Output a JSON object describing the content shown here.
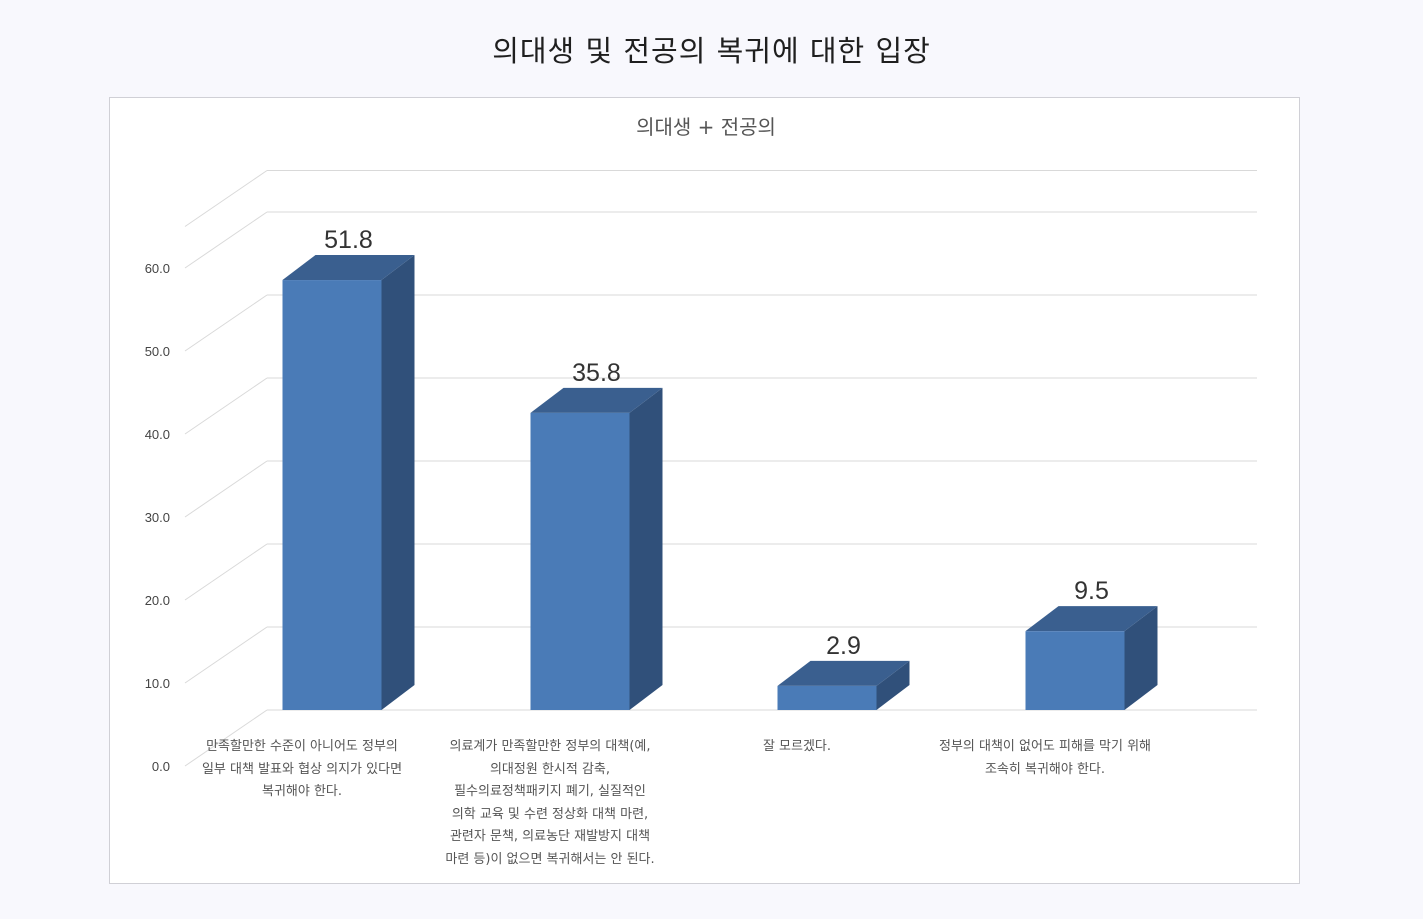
{
  "page": {
    "title": "의대생 및 전공의 복귀에 대한 입장"
  },
  "chart_data": {
    "type": "bar",
    "subtitle": "의대생 + 전공의",
    "categories": [
      "만족할만한 수준이 아니어도 정부의 일부 대책 발표와 협상 의지가 있다면 복귀해야 한다.",
      "의료계가 만족할만한 정부의 대책(예, 의대정원 한시적 감축, 필수의료정책패키지 폐기, 실질적인 의학 교육 및 수련 정상화 대책 마련, 관련자 문책, 의료농단 재발방지 대책 마련 등)이 없으면 복귀해서는 안 된다.",
      "잘 모르겠다.",
      "정부의 대책이 없어도 피해를 막기 위해 조속히 복귀해야 한다."
    ],
    "category_lines": [
      [
        "만족할만한 수준이 아니어도 정부의",
        "일부 대책 발표와 협상 의지가 있다면",
        "복귀해야 한다."
      ],
      [
        "의료계가 만족할만한 정부의 대책(예,",
        "의대정원 한시적 감축,",
        "필수의료정책패키지 폐기, 실질적인",
        "의학 교육 및 수련 정상화 대책 마련,",
        "관련자 문책, 의료농단 재발방지 대책",
        "마련 등)이 없으면 복귀해서는 안 된다."
      ],
      [
        "잘 모르겠다."
      ],
      [
        "정부의 대책이 없어도 피해를 막기 위해",
        "조속히 복귀해야 한다."
      ]
    ],
    "values": [
      51.8,
      35.8,
      2.9,
      9.5
    ],
    "value_labels": [
      "51.8",
      "35.8",
      "2.9",
      "9.5"
    ],
    "ylim": [
      0,
      65
    ],
    "yticks": [
      0,
      10,
      20,
      30,
      40,
      50,
      60
    ],
    "ytick_labels": [
      "0.0",
      "10.0",
      "20.0",
      "30.0",
      "40.0",
      "50.0",
      "60.0"
    ],
    "grid": true,
    "legend": "none",
    "bar_color_front": "#4a7bb7",
    "bar_color_top": "#3a5f8f",
    "bar_color_side": "#30507a"
  }
}
